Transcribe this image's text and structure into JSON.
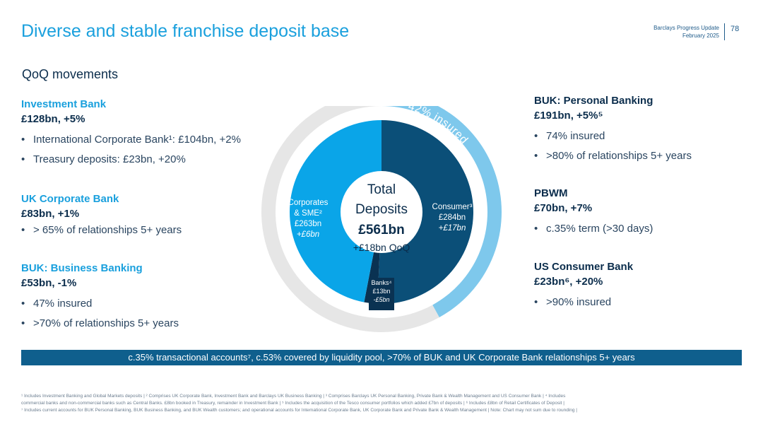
{
  "header": {
    "title": "Diverse and stable franchise deposit base",
    "brand_line1": "Barclays Progress Update",
    "brand_line2": "February 2025",
    "page_number": "78"
  },
  "subtitle": "QoQ movements",
  "left_segments": [
    {
      "heading": "Investment Bank",
      "value": "£128bn, +5%",
      "bullets": [
        "International Corporate Bank¹: £104bn, +2%",
        "Treasury deposits: £23bn, +20%"
      ]
    },
    {
      "heading": "UK Corporate Bank",
      "value": "£83bn, +1%",
      "bullets": [
        "> 65% of relationships 5+ years"
      ]
    },
    {
      "heading": "BUK: Business Banking",
      "value": "£53bn, -1%",
      "bullets": [
        "47% insured",
        ">70% of relationships 5+ years"
      ]
    }
  ],
  "right_segments": [
    {
      "heading": "BUK: Personal Banking",
      "value": "£191bn, +5%⁵",
      "bullets": [
        "74% insured",
        ">80% of relationships 5+ years"
      ]
    },
    {
      "heading": "PBWM",
      "value": "£70bn, +7%",
      "bullets": [
        "c.35% term (>30 days)"
      ]
    },
    {
      "heading": "US Consumer Bank",
      "value": "£23bn⁶, +20%",
      "bullets": [
        ">90% insured"
      ]
    }
  ],
  "chart_data": {
    "type": "pie",
    "donut": true,
    "center": {
      "line1": "Total",
      "line2": "Deposits",
      "total": "£561bn",
      "change": "+£18bn QoQ"
    },
    "slices": [
      {
        "name": "Consumer³",
        "value": 284,
        "value_label": "£284bn",
        "change": "+£17bn",
        "color": "#0b4f78"
      },
      {
        "name": "Banks⁴",
        "value": 13,
        "value_label": "£13bn",
        "change": "-£5bn",
        "color": "#0a3252"
      },
      {
        "name": "Corporates & SME²",
        "value": 263,
        "value_label": "£263bn",
        "change": "+£6bn",
        "color": "#0aa5e8"
      }
    ],
    "outer_ring": {
      "label": "42% insured",
      "insured_fraction": 0.42,
      "color": "#7ec8ec",
      "rest_color": "#e6e6e6"
    },
    "colors": {
      "label_light": "#ffffff",
      "center_text": "#0b2d4c"
    }
  },
  "banner": "c.35% transactional accounts⁷, c.53% covered by liquidity pool, >70% of BUK and UK Corporate Bank relationships 5+ years",
  "footnotes": [
    "¹ Includes Investment Banking and Global Markets deposits | ² Comprises UK Corporate Bank, Investment Bank and Barclays UK Business Banking | ³ Comprises Barclays UK Personal Banking, Private Bank & Wealth Management and US Consumer Bank | ⁴ Includes",
    "commercial banks and non-commercial banks such as Central Banks. £8bn booked in Treasury, remainder in Investment Bank | ⁵ Includes the acquisition of the Tesco consumer portfolios which added £7bn of deposits | ⁶ Includes £8bn of Retail Certificates of Deposit |",
    "⁷ Includes current accounts for BUK Personal Banking, BUK Business Banking, and BUK Wealth customers; and operational accounts for International Corporate Bank, UK Corporate Bank and Private Bank & Wealth Management | Note: Chart may not sum due to rounding |"
  ]
}
